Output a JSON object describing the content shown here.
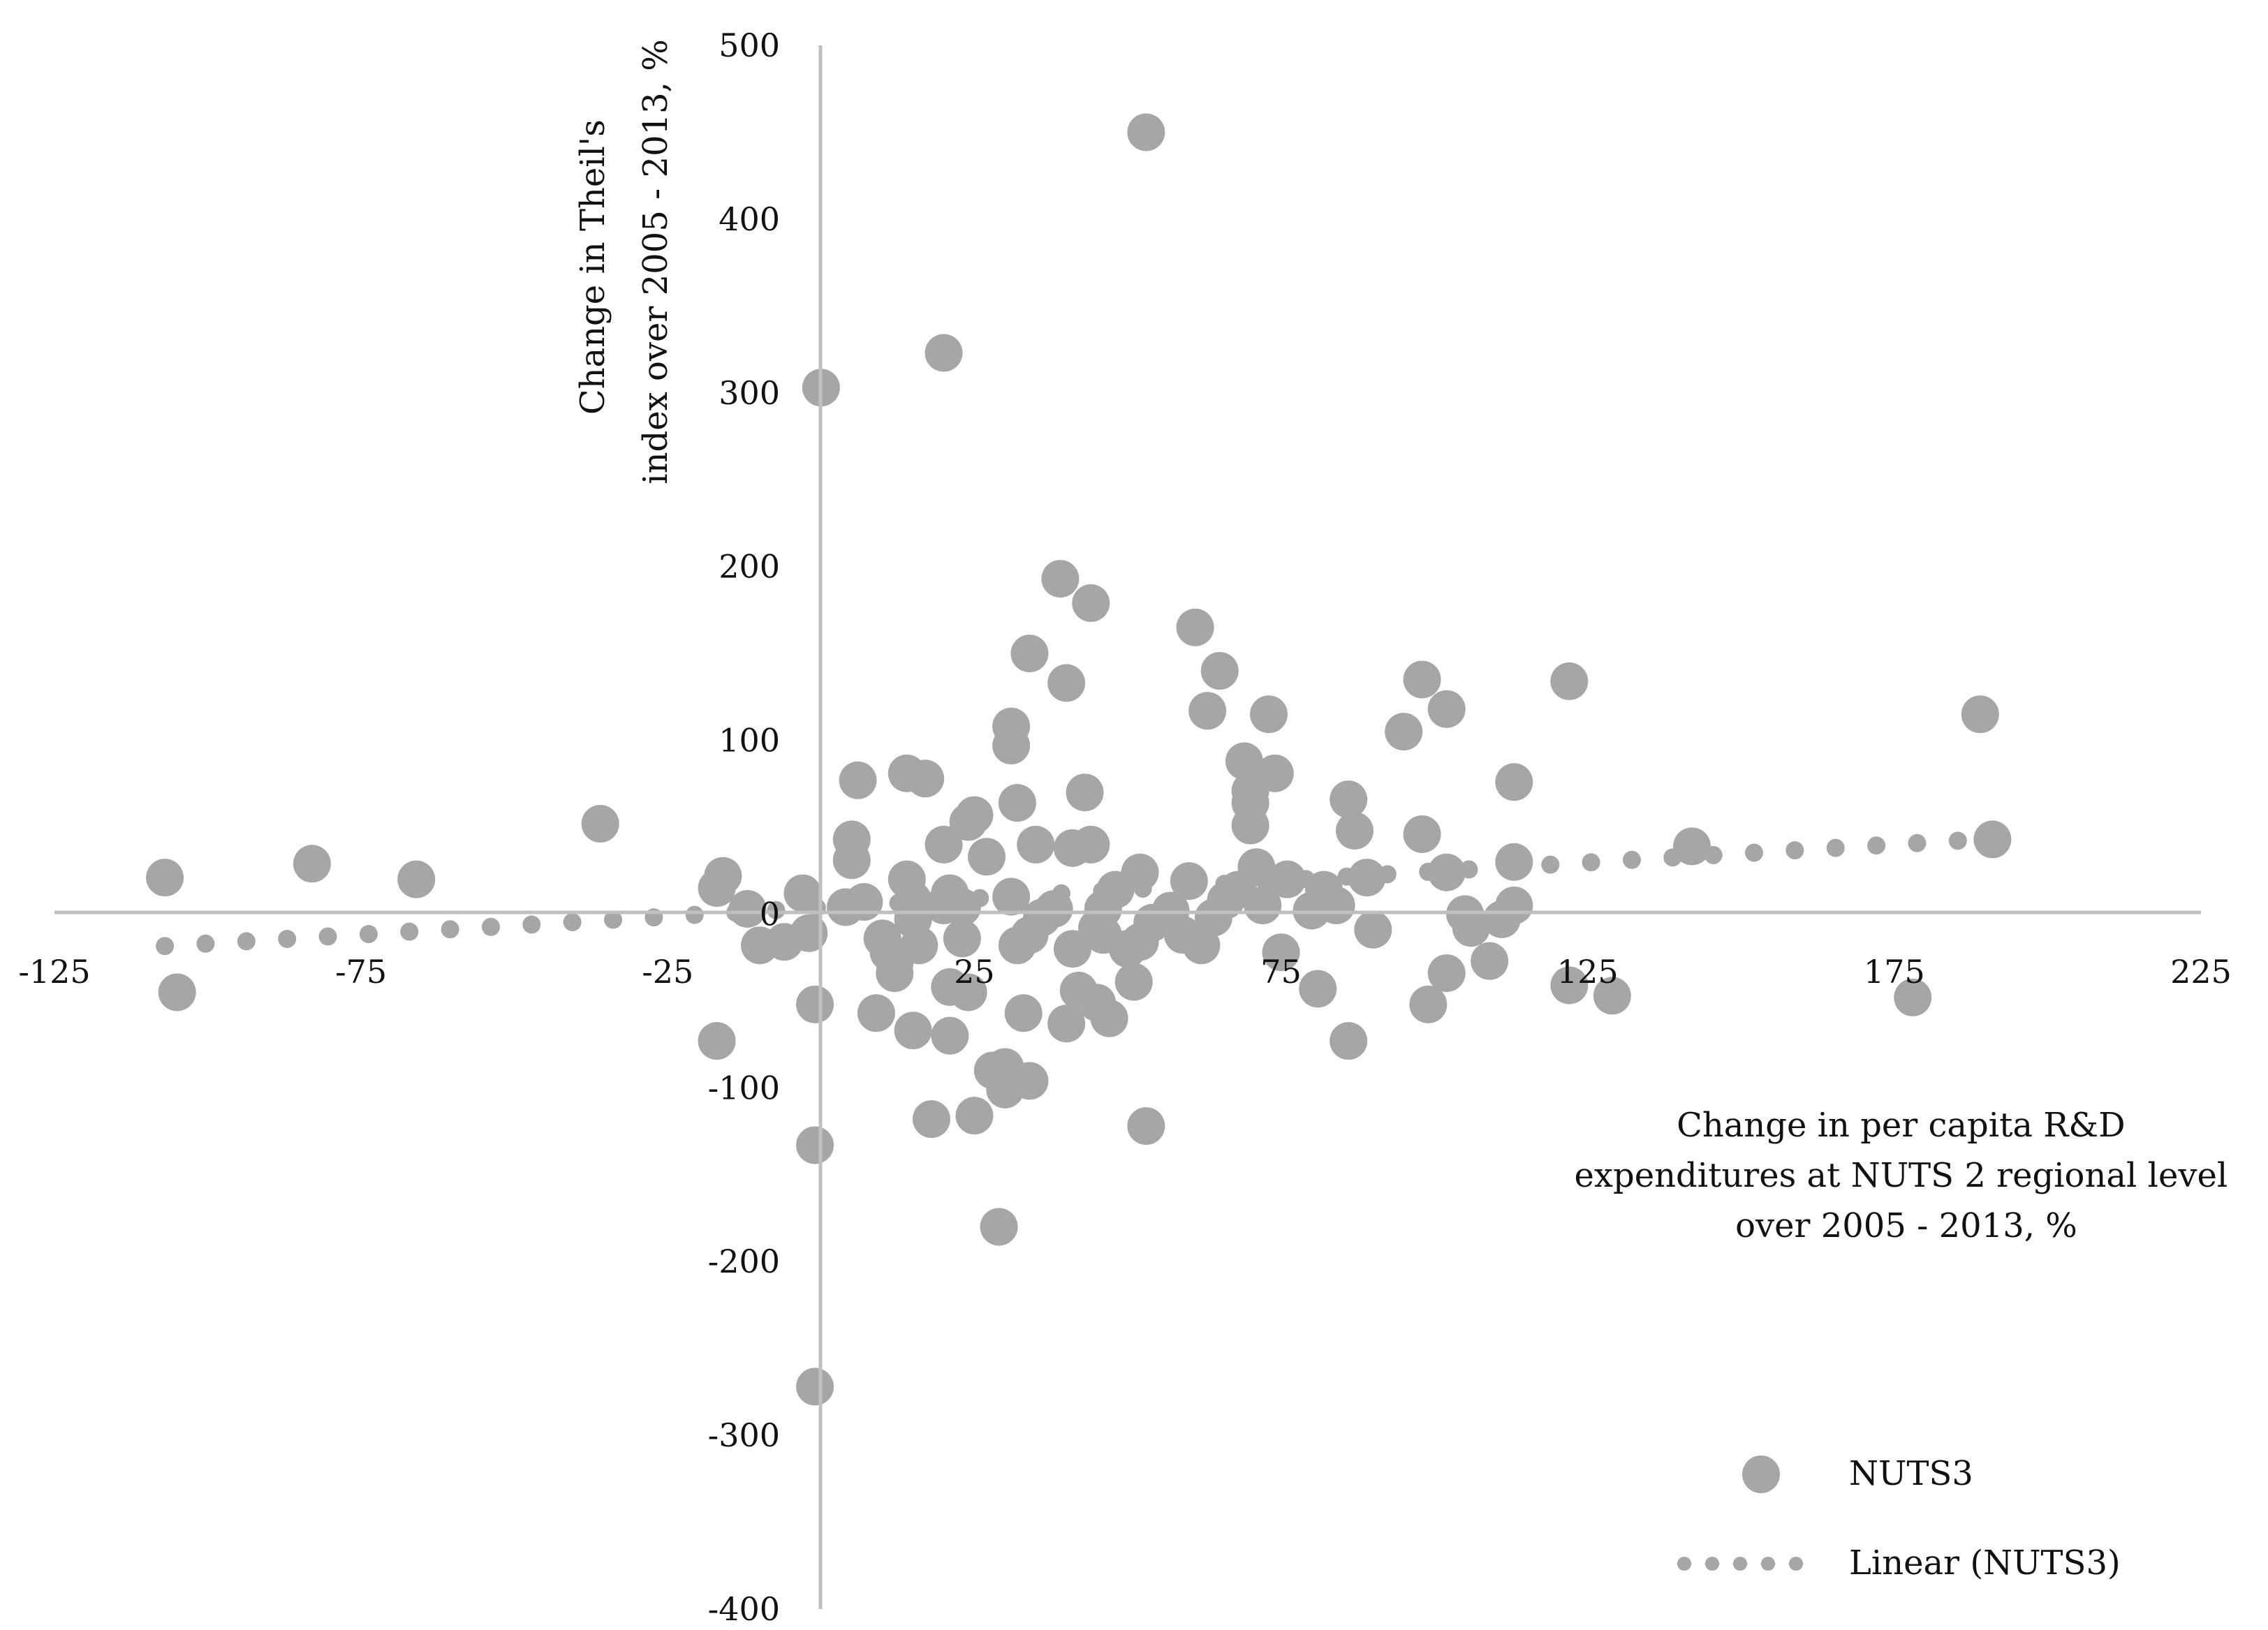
{
  "chart_data": {
    "type": "scatter",
    "title": "",
    "xlabel": [
      "Change in per capita R&D",
      "expenditures at NUTS 2 regional level",
      "over 2005 - 2013, %"
    ],
    "ylabel": [
      "Change in Theil's",
      "index over 2005 - 2013, %"
    ],
    "xlim": [
      -125,
      225
    ],
    "ylim": [
      -400,
      500
    ],
    "x_ticks": [
      "-125",
      "-75",
      "-25",
      "25",
      "75",
      "125",
      "175",
      "225"
    ],
    "x_tick_values": [
      -125,
      -75,
      -25,
      25,
      75,
      125,
      175,
      225
    ],
    "y_ticks": [
      "500",
      "400",
      "300",
      "200",
      "100",
      "0",
      "-100",
      "-200",
      "-300",
      "-400"
    ],
    "y_tick_values": [
      500,
      400,
      300,
      200,
      100,
      0,
      -100,
      -200,
      -300,
      -400
    ],
    "grid": false,
    "legend_position": "bottom-right",
    "colors": {
      "points": "#a6a6a6",
      "axis": "#bfbfbf",
      "trend": "#a6a6a6"
    },
    "series": [
      {
        "name": "NUTS3",
        "kind": "points",
        "points": [
          [
            -107,
            21
          ],
          [
            -105,
            -45
          ],
          [
            -83,
            29
          ],
          [
            -66,
            20
          ],
          [
            -36,
            52
          ],
          [
            -17,
            15
          ],
          [
            -16,
            22
          ],
          [
            -17,
            -73
          ],
          [
            -12,
            3
          ],
          [
            -10,
            -18
          ],
          [
            -6,
            -16
          ],
          [
            -3,
            12
          ],
          [
            -2,
            -11
          ],
          [
            -1,
            -133
          ],
          [
            -1,
            -272
          ],
          [
            -1,
            -52
          ],
          [
            0,
            303
          ],
          [
            4,
            4
          ],
          [
            5,
            43
          ],
          [
            6,
            77
          ],
          [
            5,
            31
          ],
          [
            7,
            7
          ],
          [
            9,
            -57
          ],
          [
            10,
            -14
          ],
          [
            11,
            -22
          ],
          [
            12,
            -34
          ],
          [
            12,
            -28
          ],
          [
            14,
            20
          ],
          [
            15,
            8
          ],
          [
            15,
            -67
          ],
          [
            15,
            -3
          ],
          [
            14,
            81
          ],
          [
            16,
            -18
          ],
          [
            17,
            78
          ],
          [
            18,
            -118
          ],
          [
            20,
            40
          ],
          [
            20,
            5
          ],
          [
            21,
            -42
          ],
          [
            21,
            -70
          ],
          [
            21,
            12
          ],
          [
            20,
            323
          ],
          [
            23,
            -14
          ],
          [
            23,
            4
          ],
          [
            24,
            -45
          ],
          [
            24,
            53
          ],
          [
            25,
            57
          ],
          [
            25,
            -116
          ],
          [
            27,
            33
          ],
          [
            28,
            -90
          ],
          [
            29,
            -180
          ],
          [
            30,
            -88
          ],
          [
            31,
            108
          ],
          [
            31,
            97
          ],
          [
            30,
            -101
          ],
          [
            31,
            10
          ],
          [
            32,
            64
          ],
          [
            32,
            -18
          ],
          [
            33,
            -57
          ],
          [
            34,
            -96
          ],
          [
            34,
            150
          ],
          [
            35,
            40
          ],
          [
            34,
            -12
          ],
          [
            36,
            -2
          ],
          [
            38,
            3
          ],
          [
            39,
            193
          ],
          [
            40,
            -63
          ],
          [
            40,
            133
          ],
          [
            41,
            38
          ],
          [
            41,
            -20
          ],
          [
            42,
            -44
          ],
          [
            43,
            70
          ],
          [
            44,
            179
          ],
          [
            44,
            40
          ],
          [
            45,
            -8
          ],
          [
            45,
            -51
          ],
          [
            46,
            3
          ],
          [
            46,
            -12
          ],
          [
            47,
            -60
          ],
          [
            48,
            14
          ],
          [
            50,
            -20
          ],
          [
            51,
            -39
          ],
          [
            52,
            24
          ],
          [
            52,
            -16
          ],
          [
            53,
            450
          ],
          [
            53,
            -122
          ],
          [
            54,
            -5
          ],
          [
            57,
            2
          ],
          [
            59,
            -12
          ],
          [
            60,
            19
          ],
          [
            61,
            165
          ],
          [
            62,
            -18
          ],
          [
            63,
            117
          ],
          [
            64,
            -2
          ],
          [
            65,
            140
          ],
          [
            66,
            8
          ],
          [
            68,
            14
          ],
          [
            69,
            88
          ],
          [
            70,
            71
          ],
          [
            70,
            64
          ],
          [
            70,
            51
          ],
          [
            71,
            27
          ],
          [
            72,
            5
          ],
          [
            73,
            115
          ],
          [
            74,
            81
          ],
          [
            75,
            -22
          ],
          [
            76,
            20
          ],
          [
            80,
            2
          ],
          [
            81,
            -43
          ],
          [
            82,
            14
          ],
          [
            84,
            5
          ],
          [
            86,
            -73
          ],
          [
            86,
            66
          ],
          [
            87,
            48
          ],
          [
            89,
            21
          ],
          [
            90,
            -9
          ],
          [
            95,
            105
          ],
          [
            98,
            135
          ],
          [
            98,
            46
          ],
          [
            99,
            -52
          ],
          [
            102,
            -34
          ],
          [
            102,
            24
          ],
          [
            102,
            118
          ],
          [
            105,
            0
          ],
          [
            106,
            -8
          ],
          [
            109,
            -27
          ],
          [
            111,
            -3
          ],
          [
            113,
            76
          ],
          [
            113,
            5
          ],
          [
            113,
            30
          ],
          [
            122,
            134
          ],
          [
            122,
            -41
          ],
          [
            129,
            -47
          ],
          [
            142,
            39
          ],
          [
            178,
            -48
          ],
          [
            189,
            115
          ],
          [
            191,
            43
          ]
        ]
      },
      {
        "name": "Linear (NUTS3)",
        "kind": "trendline",
        "style": "dotted",
        "line": [
          [
            -107,
            -18.4
          ],
          [
            192,
            43.6
          ]
        ]
      }
    ]
  }
}
